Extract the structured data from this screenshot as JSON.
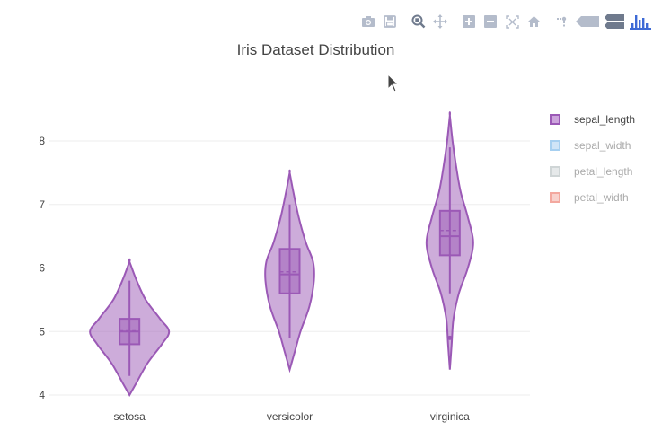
{
  "title": "Iris Dataset Distribution",
  "modebar": {
    "buttons": [
      {
        "name": "camera-icon",
        "label": "Download plot as a png"
      },
      {
        "name": "save-icon",
        "label": "Save"
      },
      {
        "name": "zoom-icon",
        "label": "Zoom"
      },
      {
        "name": "pan-icon",
        "label": "Pan"
      },
      {
        "name": "zoom-in-icon",
        "label": "Zoom in"
      },
      {
        "name": "zoom-out-icon",
        "label": "Zoom out"
      },
      {
        "name": "autoscale-icon",
        "label": "Autoscale"
      },
      {
        "name": "home-icon",
        "label": "Reset axes"
      },
      {
        "name": "spike-lines-icon",
        "label": "Toggle Spike Lines"
      },
      {
        "name": "hover-closest-icon",
        "label": "Show closest data on hover"
      },
      {
        "name": "hover-compare-icon",
        "label": "Compare data on hover"
      },
      {
        "name": "plotly-logo-icon",
        "label": "Produced with Plotly"
      }
    ]
  },
  "colors": {
    "sepal_length": "#9b59b6",
    "sepal_width": "#3498db",
    "petal_length": "#95a5a6",
    "petal_width": "#e74c3c",
    "grid": "#eeeeee",
    "text": "#444444"
  },
  "chart_data": {
    "type": "violin",
    "title": "Iris Dataset Distribution",
    "xlabel": "",
    "ylabel": "",
    "categories": [
      "setosa",
      "versicolor",
      "virginica"
    ],
    "yticks": [
      4,
      5,
      6,
      7,
      8
    ],
    "ylim": [
      3.97,
      8.83
    ],
    "grid": true,
    "legend_position": "right",
    "legend": [
      {
        "name": "sepal_length",
        "visible": true
      },
      {
        "name": "sepal_width",
        "visible": "legendonly"
      },
      {
        "name": "petal_length",
        "visible": "legendonly"
      },
      {
        "name": "petal_width",
        "visible": "legendonly"
      }
    ],
    "series": [
      {
        "name": "sepal_length",
        "violins": [
          {
            "category": "setosa",
            "min": 4.0,
            "max": 6.1,
            "q1": 4.8,
            "median": 5.0,
            "q3": 5.2,
            "mean": 5.01,
            "whisker_low": 4.3,
            "whisker_high": 5.8,
            "outliers": []
          },
          {
            "category": "versicolor",
            "min": 4.4,
            "max": 7.5,
            "q1": 5.6,
            "median": 5.9,
            "q3": 6.3,
            "mean": 5.94,
            "whisker_low": 4.9,
            "whisker_high": 7.0,
            "outliers": []
          },
          {
            "category": "virginica",
            "min": 4.4,
            "max": 8.4,
            "q1": 6.2,
            "median": 6.5,
            "q3": 6.9,
            "mean": 6.59,
            "whisker_low": 5.6,
            "whisker_high": 7.9,
            "outliers": [
              4.9
            ]
          }
        ]
      }
    ]
  }
}
